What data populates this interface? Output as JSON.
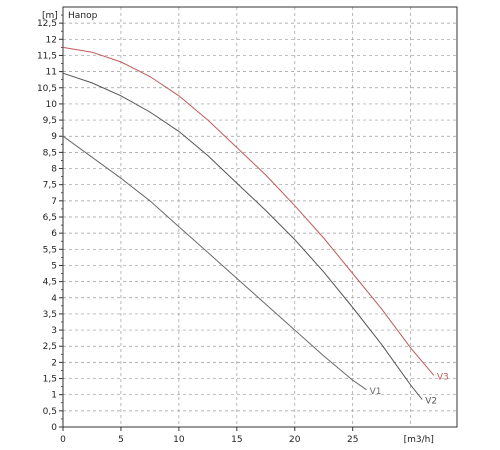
{
  "chart_data": {
    "type": "line",
    "title": "Напор",
    "ylabel": "[m]",
    "xlabel": "[m3/h]",
    "xlim": [
      0,
      34
    ],
    "ylim": [
      0,
      13
    ],
    "x_ticks": [
      "0",
      "5",
      "10",
      "15",
      "20",
      "25"
    ],
    "y_ticks": [
      "0",
      "0,5",
      "1",
      "1,5",
      "2",
      "2,5",
      "3",
      "3,5",
      "4",
      "4,5",
      "5",
      "5,5",
      "6",
      "6,5",
      "7",
      "7,5",
      "8",
      "8,5",
      "9",
      "9,5",
      "10",
      "10,5",
      "11",
      "11,5",
      "12",
      "12,5"
    ],
    "grid": true,
    "series": [
      {
        "name": "V1",
        "color": "#6a6a6a",
        "points": [
          [
            0,
            9.0
          ],
          [
            2.5,
            8.35
          ],
          [
            5,
            7.7
          ],
          [
            7.5,
            7.0
          ],
          [
            10,
            6.2
          ],
          [
            12.5,
            5.4
          ],
          [
            15,
            4.6
          ],
          [
            17.5,
            3.8
          ],
          [
            20,
            3.0
          ],
          [
            22.5,
            2.2
          ],
          [
            25,
            1.45
          ],
          [
            26.2,
            1.15
          ]
        ]
      },
      {
        "name": "V2",
        "color": "#555555",
        "points": [
          [
            0,
            10.95
          ],
          [
            2.5,
            10.65
          ],
          [
            5,
            10.25
          ],
          [
            7.5,
            9.75
          ],
          [
            10,
            9.15
          ],
          [
            12.5,
            8.4
          ],
          [
            15,
            7.55
          ],
          [
            17.5,
            6.7
          ],
          [
            20,
            5.8
          ],
          [
            22.5,
            4.8
          ],
          [
            25,
            3.7
          ],
          [
            27.5,
            2.55
          ],
          [
            30,
            1.3
          ],
          [
            31,
            0.85
          ]
        ]
      },
      {
        "name": "V3",
        "color": "#c05a5a",
        "points": [
          [
            0,
            11.75
          ],
          [
            2.5,
            11.6
          ],
          [
            5,
            11.3
          ],
          [
            7.5,
            10.85
          ],
          [
            10,
            10.25
          ],
          [
            12.5,
            9.5
          ],
          [
            15,
            8.65
          ],
          [
            17.5,
            7.8
          ],
          [
            20,
            6.85
          ],
          [
            22.5,
            5.85
          ],
          [
            25,
            4.75
          ],
          [
            27.5,
            3.65
          ],
          [
            30,
            2.45
          ],
          [
            32,
            1.6
          ]
        ]
      }
    ]
  }
}
